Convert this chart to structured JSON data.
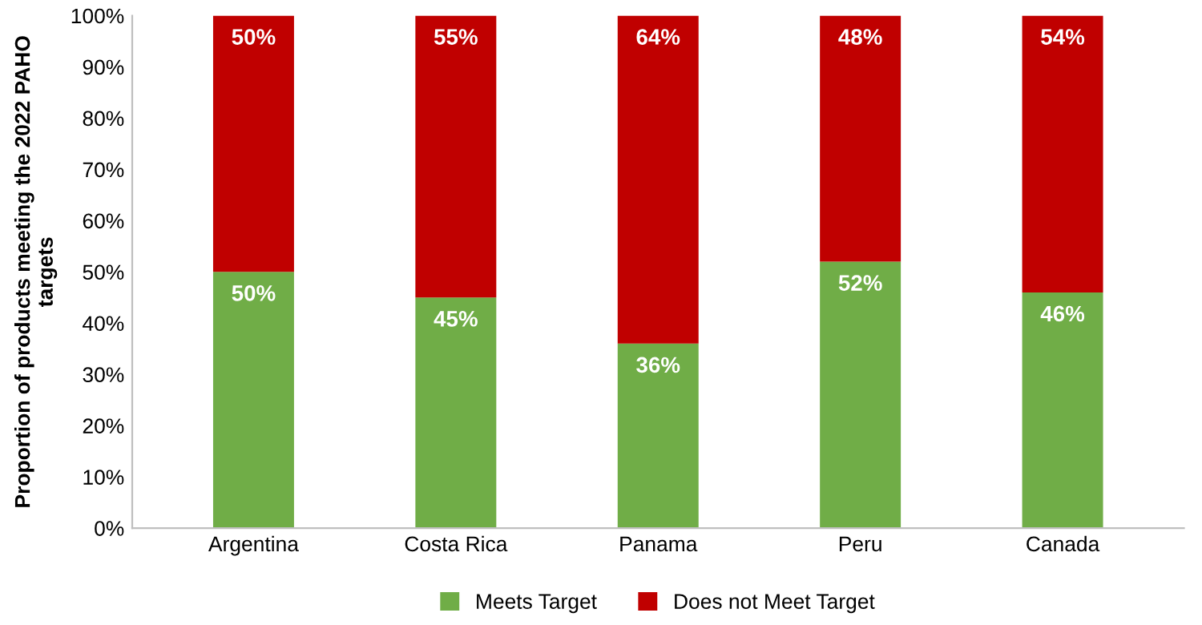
{
  "chart_data": {
    "type": "bar",
    "stacked": true,
    "ylabel": "Proportion of products meeting the 2022 PAHO targets",
    "categories": [
      "Argentina",
      "Costa Rica",
      "Panama",
      "Peru",
      "Canada"
    ],
    "series": [
      {
        "name": "Meets Target",
        "color": "#70ad47",
        "values": [
          50,
          45,
          36,
          52,
          46
        ],
        "value_labels": [
          "50%",
          "45%",
          "36%",
          "52%",
          "46%"
        ]
      },
      {
        "name": "Does not Meet Target",
        "color": "#c00000",
        "values": [
          50,
          55,
          64,
          48,
          54
        ],
        "value_labels": [
          "50%",
          "55%",
          "64%",
          "48%",
          "54%"
        ]
      }
    ],
    "ylim": [
      0,
      100
    ],
    "yticks": [
      {
        "value": 0,
        "label": "0%"
      },
      {
        "value": 10,
        "label": "10%"
      },
      {
        "value": 20,
        "label": "20%"
      },
      {
        "value": 30,
        "label": "30%"
      },
      {
        "value": 40,
        "label": "40%"
      },
      {
        "value": 50,
        "label": "50%"
      },
      {
        "value": 60,
        "label": "60%"
      },
      {
        "value": 70,
        "label": "70%"
      },
      {
        "value": 80,
        "label": "80%"
      },
      {
        "value": 90,
        "label": "90%"
      },
      {
        "value": 100,
        "label": "100%"
      }
    ],
    "grid": false,
    "legend": "bottom"
  }
}
